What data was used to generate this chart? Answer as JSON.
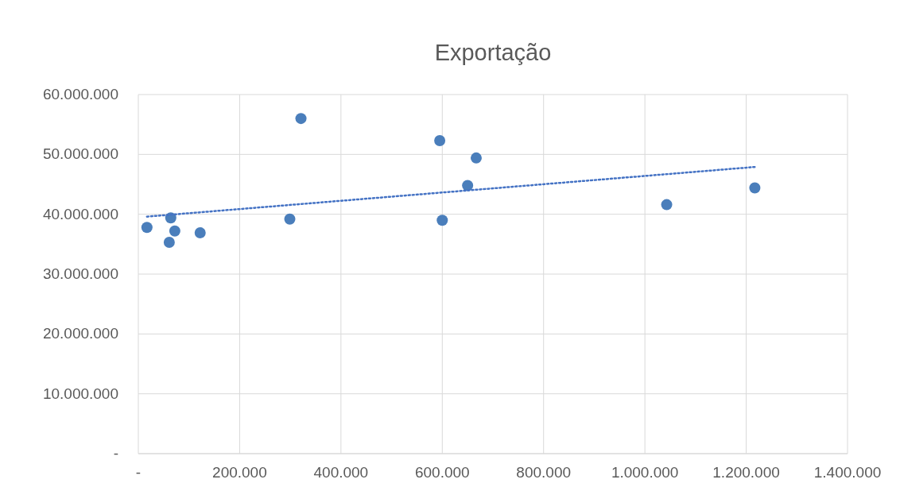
{
  "chart_data": {
    "type": "scatter",
    "title": "Exportação",
    "series": [
      {
        "color": "#4a7ebb",
        "marker": "circle",
        "x": [
          17000,
          64000,
          61000,
          72000,
          122000,
          299000,
          321000,
          595000,
          600000,
          650000,
          667000,
          1043000,
          1217000
        ],
        "values": [
          37800000,
          39400000,
          35300000,
          37200000,
          36900000,
          39200000,
          56000000,
          52300000,
          39000000,
          44800000,
          49400000,
          41600000,
          44400000
        ]
      },
      {
        "type": "line",
        "color": "#4472c4",
        "line_style": "dotted",
        "marker": "none",
        "x": [
          17000,
          1217000
        ],
        "values": [
          39600000,
          47900000
        ]
      }
    ],
    "xlim": [
      0,
      1400000
    ],
    "xticks": [
      {
        "value": 0,
        "label": "-"
      },
      {
        "value": 200000,
        "label": "200.000"
      },
      {
        "value": 400000,
        "label": "400.000"
      },
      {
        "value": 600000,
        "label": "600.000"
      },
      {
        "value": 800000,
        "label": "800.000"
      },
      {
        "value": 1000000,
        "label": "1.000.000"
      },
      {
        "value": 1200000,
        "label": "1.200.000"
      },
      {
        "value": 1400000,
        "label": "1.400.000"
      }
    ],
    "ylim": [
      0,
      60000000
    ],
    "yticks": [
      {
        "value": 0,
        "label": "-"
      },
      {
        "value": 10000000,
        "label": "10.000.000"
      },
      {
        "value": 20000000,
        "label": "20.000.000"
      },
      {
        "value": 30000000,
        "label": "30.000.000"
      },
      {
        "value": 40000000,
        "label": "40.000.000"
      },
      {
        "value": 50000000,
        "label": "50.000.000"
      },
      {
        "value": 60000000,
        "label": "60.000.000"
      }
    ],
    "grid": true
  }
}
